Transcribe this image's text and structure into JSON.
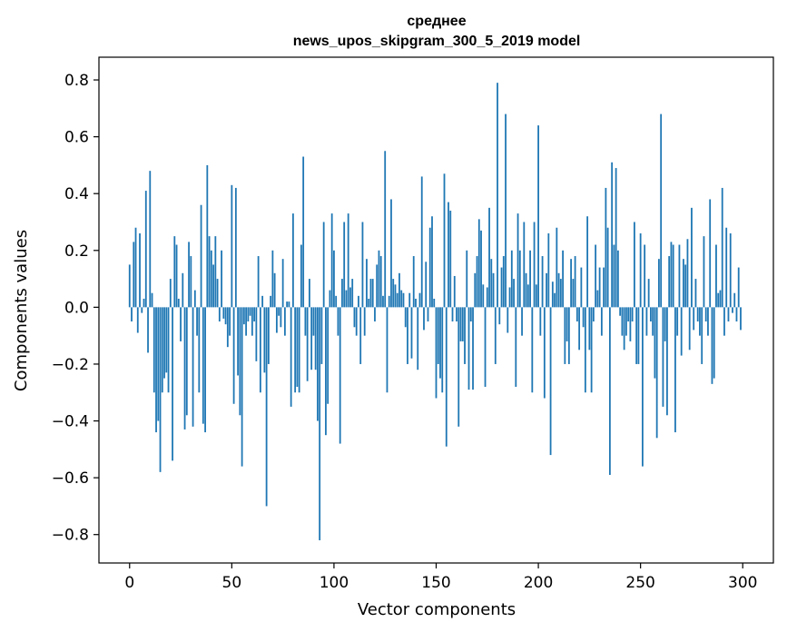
{
  "chart_data": {
    "type": "bar",
    "title_line1": "среднее",
    "title_line2": "news_upos_skipgram_300_5_2019 model",
    "xlabel": "Vector components",
    "ylabel": "Components values",
    "xlim": [
      -15,
      315
    ],
    "ylim": [
      -0.9,
      0.88
    ],
    "xticks": [
      0,
      50,
      100,
      150,
      200,
      250,
      300
    ],
    "xtick_labels": [
      "0",
      "50",
      "100",
      "150",
      "200",
      "250",
      "300"
    ],
    "yticks": [
      -0.8,
      -0.6,
      -0.4,
      -0.2,
      0.0,
      0.2,
      0.4,
      0.6,
      0.8
    ],
    "ytick_labels": [
      "−0.8",
      "−0.6",
      "−0.4",
      "−0.2",
      "0.0",
      "0.2",
      "0.4",
      "0.6",
      "0.8"
    ],
    "bar_color": "#1f77b4",
    "grid": false,
    "values": [
      0.15,
      -0.05,
      0.23,
      0.28,
      -0.09,
      0.26,
      -0.02,
      0.03,
      0.41,
      -0.16,
      0.48,
      0.05,
      -0.3,
      -0.44,
      -0.4,
      -0.58,
      -0.3,
      -0.25,
      -0.23,
      -0.3,
      0.1,
      -0.54,
      0.25,
      0.22,
      0.03,
      -0.12,
      0.12,
      -0.43,
      -0.38,
      0.23,
      0.18,
      -0.42,
      0.06,
      -0.1,
      -0.3,
      0.36,
      -0.41,
      -0.44,
      0.5,
      0.25,
      0.2,
      0.15,
      0.25,
      0.1,
      -0.05,
      0.2,
      -0.04,
      -0.06,
      -0.14,
      -0.1,
      0.43,
      -0.34,
      0.42,
      -0.24,
      -0.38,
      -0.56,
      -0.06,
      -0.1,
      -0.05,
      -0.03,
      -0.1,
      -0.05,
      -0.19,
      0.18,
      -0.3,
      0.04,
      -0.23,
      -0.7,
      -0.2,
      0.04,
      0.2,
      0.12,
      -0.09,
      -0.03,
      -0.07,
      0.17,
      -0.1,
      0.02,
      0.02,
      -0.35,
      0.33,
      -0.3,
      -0.28,
      -0.3,
      0.22,
      0.53,
      -0.1,
      -0.26,
      0.1,
      -0.22,
      -0.1,
      -0.22,
      -0.4,
      -0.82,
      -0.2,
      0.3,
      -0.45,
      -0.34,
      0.06,
      0.33,
      0.2,
      0.04,
      -0.1,
      -0.48,
      0.1,
      0.3,
      0.06,
      0.33,
      0.07,
      0.1,
      -0.07,
      -0.1,
      0.04,
      -0.2,
      0.3,
      -0.1,
      0.17,
      0.03,
      0.1,
      0.1,
      -0.05,
      0.15,
      0.2,
      0.18,
      0.04,
      0.55,
      -0.3,
      0.04,
      0.38,
      0.1,
      0.08,
      0.05,
      0.12,
      0.06,
      0.05,
      -0.07,
      -0.2,
      0.05,
      -0.18,
      0.18,
      0.03,
      -0.22,
      0.05,
      0.46,
      -0.08,
      0.16,
      -0.05,
      0.28,
      0.32,
      0.03,
      -0.32,
      -0.2,
      -0.25,
      -0.3,
      0.47,
      -0.49,
      0.37,
      0.34,
      -0.05,
      0.11,
      -0.05,
      -0.42,
      -0.12,
      -0.12,
      -0.2,
      0.2,
      -0.29,
      -0.05,
      -0.29,
      0.12,
      0.18,
      0.31,
      0.27,
      0.08,
      -0.28,
      0.07,
      0.35,
      0.17,
      0.12,
      -0.2,
      0.79,
      -0.06,
      0.14,
      0.18,
      0.68,
      -0.09,
      0.07,
      0.2,
      0.1,
      -0.28,
      0.33,
      0.2,
      -0.1,
      0.3,
      0.12,
      0.08,
      0.2,
      -0.3,
      0.3,
      0.08,
      0.64,
      -0.1,
      0.18,
      -0.32,
      0.12,
      0.26,
      -0.52,
      0.09,
      0.05,
      0.28,
      0.12,
      0.1,
      0.2,
      -0.2,
      -0.12,
      -0.2,
      0.17,
      0.1,
      0.18,
      -0.05,
      -0.15,
      0.14,
      -0.07,
      -0.3,
      0.32,
      -0.15,
      -0.3,
      -0.05,
      0.22,
      0.06,
      0.14,
      -0.1,
      0.14,
      0.42,
      0.28,
      -0.59,
      0.51,
      0.22,
      0.49,
      0.2,
      -0.03,
      -0.1,
      -0.15,
      -0.1,
      -0.05,
      -0.12,
      -0.05,
      0.3,
      -0.2,
      -0.2,
      0.26,
      -0.56,
      0.22,
      -0.1,
      0.1,
      -0.05,
      -0.1,
      -0.25,
      -0.46,
      0.17,
      0.68,
      -0.35,
      -0.12,
      -0.38,
      0.18,
      0.23,
      0.22,
      -0.44,
      -0.1,
      0.22,
      -0.17,
      0.17,
      0.15,
      0.24,
      -0.15,
      0.35,
      -0.08,
      0.1,
      -0.05,
      -0.1,
      -0.2,
      0.25,
      -0.05,
      -0.1,
      0.38,
      -0.27,
      -0.25,
      0.22,
      0.05,
      0.06,
      0.42,
      -0.1,
      0.28,
      -0.05,
      0.26,
      -0.02,
      0.05,
      -0.05,
      0.14,
      -0.08
    ]
  }
}
